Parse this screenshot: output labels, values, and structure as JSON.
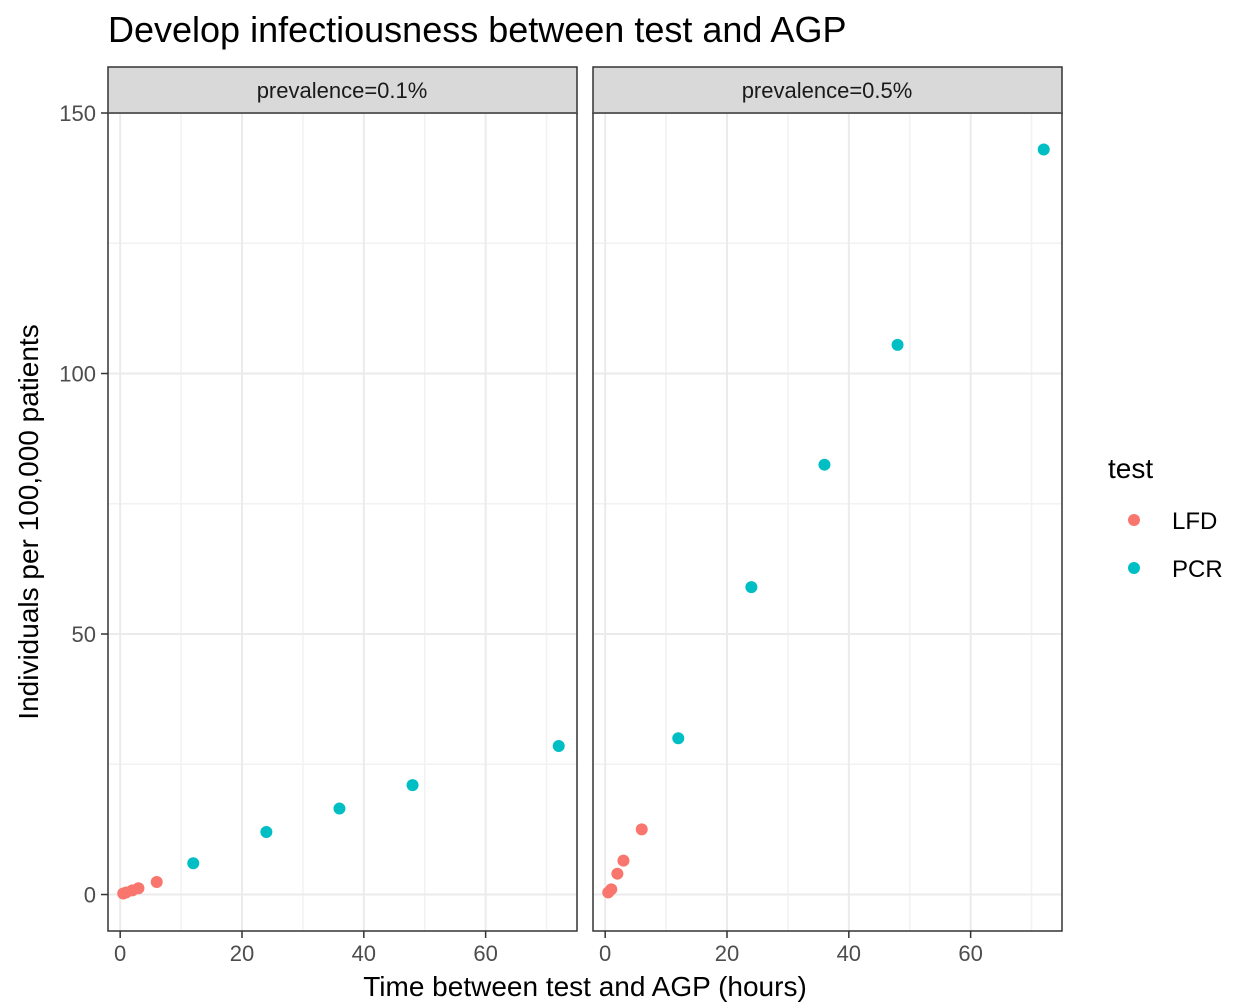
{
  "chart_data": {
    "type": "scatter",
    "title": "Develop infectiousness between test and AGP",
    "xlabel": "Time between test and AGP (hours)",
    "ylabel": "Individuals per 100,000 patients",
    "xlim": [
      -2,
      75
    ],
    "ylim": [
      -7,
      150
    ],
    "x_ticks": [
      0,
      20,
      40,
      60
    ],
    "y_ticks": [
      0,
      50,
      100,
      150
    ],
    "grid": true,
    "legend": {
      "title": "test",
      "position": "right",
      "entries": [
        {
          "label": "LFD",
          "color": "#F8766D"
        },
        {
          "label": "PCR",
          "color": "#00BFC4"
        }
      ]
    },
    "panels": [
      {
        "strip": "prevalence=0.1%",
        "series": [
          {
            "name": "LFD",
            "color": "#F8766D",
            "x": [
              0.5,
              1,
              2,
              3,
              6
            ],
            "y": [
              0.2,
              0.4,
              0.8,
              1.2,
              2.4
            ]
          },
          {
            "name": "PCR",
            "color": "#00BFC4",
            "x": [
              12,
              24,
              36,
              48,
              72
            ],
            "y": [
              6,
              12,
              16.5,
              21,
              28.5
            ]
          }
        ]
      },
      {
        "strip": "prevalence=0.5%",
        "series": [
          {
            "name": "LFD",
            "color": "#F8766D",
            "x": [
              0.5,
              1,
              2,
              3,
              6
            ],
            "y": [
              0.4,
              1,
              4,
              6.5,
              12.5
            ]
          },
          {
            "name": "PCR",
            "color": "#00BFC4",
            "x": [
              12,
              24,
              36,
              48,
              72
            ],
            "y": [
              30,
              59,
              82.5,
              105.5,
              143
            ]
          }
        ]
      }
    ]
  }
}
